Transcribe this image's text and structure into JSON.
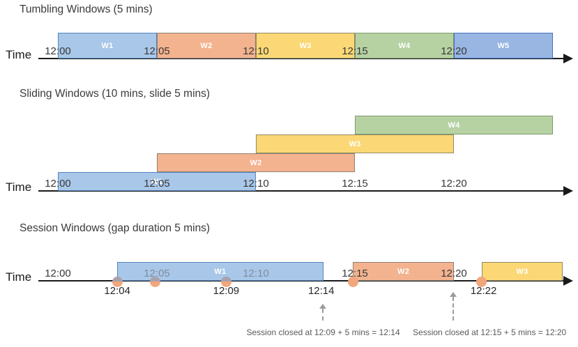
{
  "page": {
    "background": "#ffffff"
  },
  "colors": {
    "axis": "#1a1a1a",
    "tick_text": "#383838",
    "muted_tick_text": "#7d8ca1",
    "event_label_text": "#262626",
    "annotation_text": "#595959",
    "annotation_arrow": "#9b9b9b",
    "window_label_text": "#ffffff",
    "event_fill": "#f2a67c",
    "event_muted_top": "#a9a2ab",
    "palette": {
      "blue": {
        "fill": "#a9c7e8",
        "border": "#5585be"
      },
      "blue2": {
        "fill": "#99b5e2",
        "border": "#4472c4"
      },
      "orange": {
        "fill": "#f3b38e",
        "border": "#8c8276"
      },
      "yellow": {
        "fill": "#fbd875",
        "border": "#8f8a63"
      },
      "green": {
        "fill": "#b6d2a3",
        "border": "#7e9a6e"
      }
    }
  },
  "sections": [
    {
      "id": "tumbling",
      "title": "Tumbling Windows (5 mins)",
      "time_label": "Time",
      "ticks": [
        {
          "min": 0,
          "label": "12:00"
        },
        {
          "min": 5,
          "label": "12:05"
        },
        {
          "min": 10,
          "label": "12:10"
        },
        {
          "min": 15,
          "label": "12:15"
        },
        {
          "min": 20,
          "label": "12:20"
        }
      ],
      "windows": [
        {
          "name": "W1",
          "start": 0,
          "end": 5,
          "color": "blue",
          "row": 0
        },
        {
          "name": "W2",
          "start": 5,
          "end": 10,
          "color": "orange",
          "row": 0
        },
        {
          "name": "W3",
          "start": 10,
          "end": 15,
          "color": "yellow",
          "row": 0
        },
        {
          "name": "W4",
          "start": 15,
          "end": 20,
          "color": "green",
          "row": 0
        },
        {
          "name": "W5",
          "start": 20,
          "end": 25,
          "color": "blue2",
          "row": 0
        }
      ]
    },
    {
      "id": "sliding",
      "title": "Sliding Windows (10 mins, slide 5 mins)",
      "time_label": "Time",
      "ticks": [
        {
          "min": 0,
          "label": "12:00"
        },
        {
          "min": 5,
          "label": "12:05"
        },
        {
          "min": 10,
          "label": "12:10"
        },
        {
          "min": 15,
          "label": "12:15"
        },
        {
          "min": 20,
          "label": "12:20"
        }
      ],
      "windows": [
        {
          "name": "W1",
          "start": 0,
          "end": 10,
          "color": "blue",
          "row": 0
        },
        {
          "name": "W2",
          "start": 5,
          "end": 15,
          "color": "orange",
          "row": 1
        },
        {
          "name": "W3",
          "start": 10,
          "end": 20,
          "color": "yellow",
          "row": 2
        },
        {
          "name": "W4",
          "start": 15,
          "end": 25,
          "color": "green",
          "row": 3
        }
      ]
    },
    {
      "id": "session",
      "title": "Session Windows (gap duration 5 mins)",
      "time_label": "Time",
      "ticks": [
        {
          "min": 0,
          "label": "12:00"
        },
        {
          "min": 5,
          "label": "12:05",
          "muted": true
        },
        {
          "min": 10,
          "label": "12:10",
          "muted": true
        },
        {
          "min": 15,
          "label": "12:15"
        },
        {
          "min": 20,
          "label": "12:20"
        }
      ],
      "windows": [
        {
          "name": "W1",
          "start": 3.0,
          "end": 13.4,
          "color": "blue",
          "row": 0
        },
        {
          "name": "W2",
          "start": 14.9,
          "end": 20.0,
          "color": "orange",
          "row": 0
        },
        {
          "name": "W3",
          "start": 21.4,
          "end": 25.5,
          "color": "yellow",
          "row": 0
        }
      ],
      "events": [
        {
          "min": 3.0,
          "muted_top": true
        },
        {
          "min": 4.9,
          "muted_top": true
        },
        {
          "min": 8.5,
          "muted_top": true
        },
        {
          "min": 14.9,
          "muted_top": false
        },
        {
          "min": 21.4,
          "muted_top": false
        }
      ],
      "event_labels": [
        {
          "min": 3.0,
          "label": "12:04"
        },
        {
          "min": 8.5,
          "label": "12:09"
        },
        {
          "min": 13.3,
          "label": "12:14"
        },
        {
          "min": 21.5,
          "label": "12:22"
        }
      ],
      "annotations": [
        {
          "text": "Session closed at 12:09 + 5 mins = 12:14",
          "arrow_min": 13.4,
          "text_center_min": 13.4
        },
        {
          "text": "Session closed at 12:15 + 5 mins = 12:20",
          "arrow_min": 20.0,
          "text_center_min": 21.8
        }
      ]
    }
  ]
}
